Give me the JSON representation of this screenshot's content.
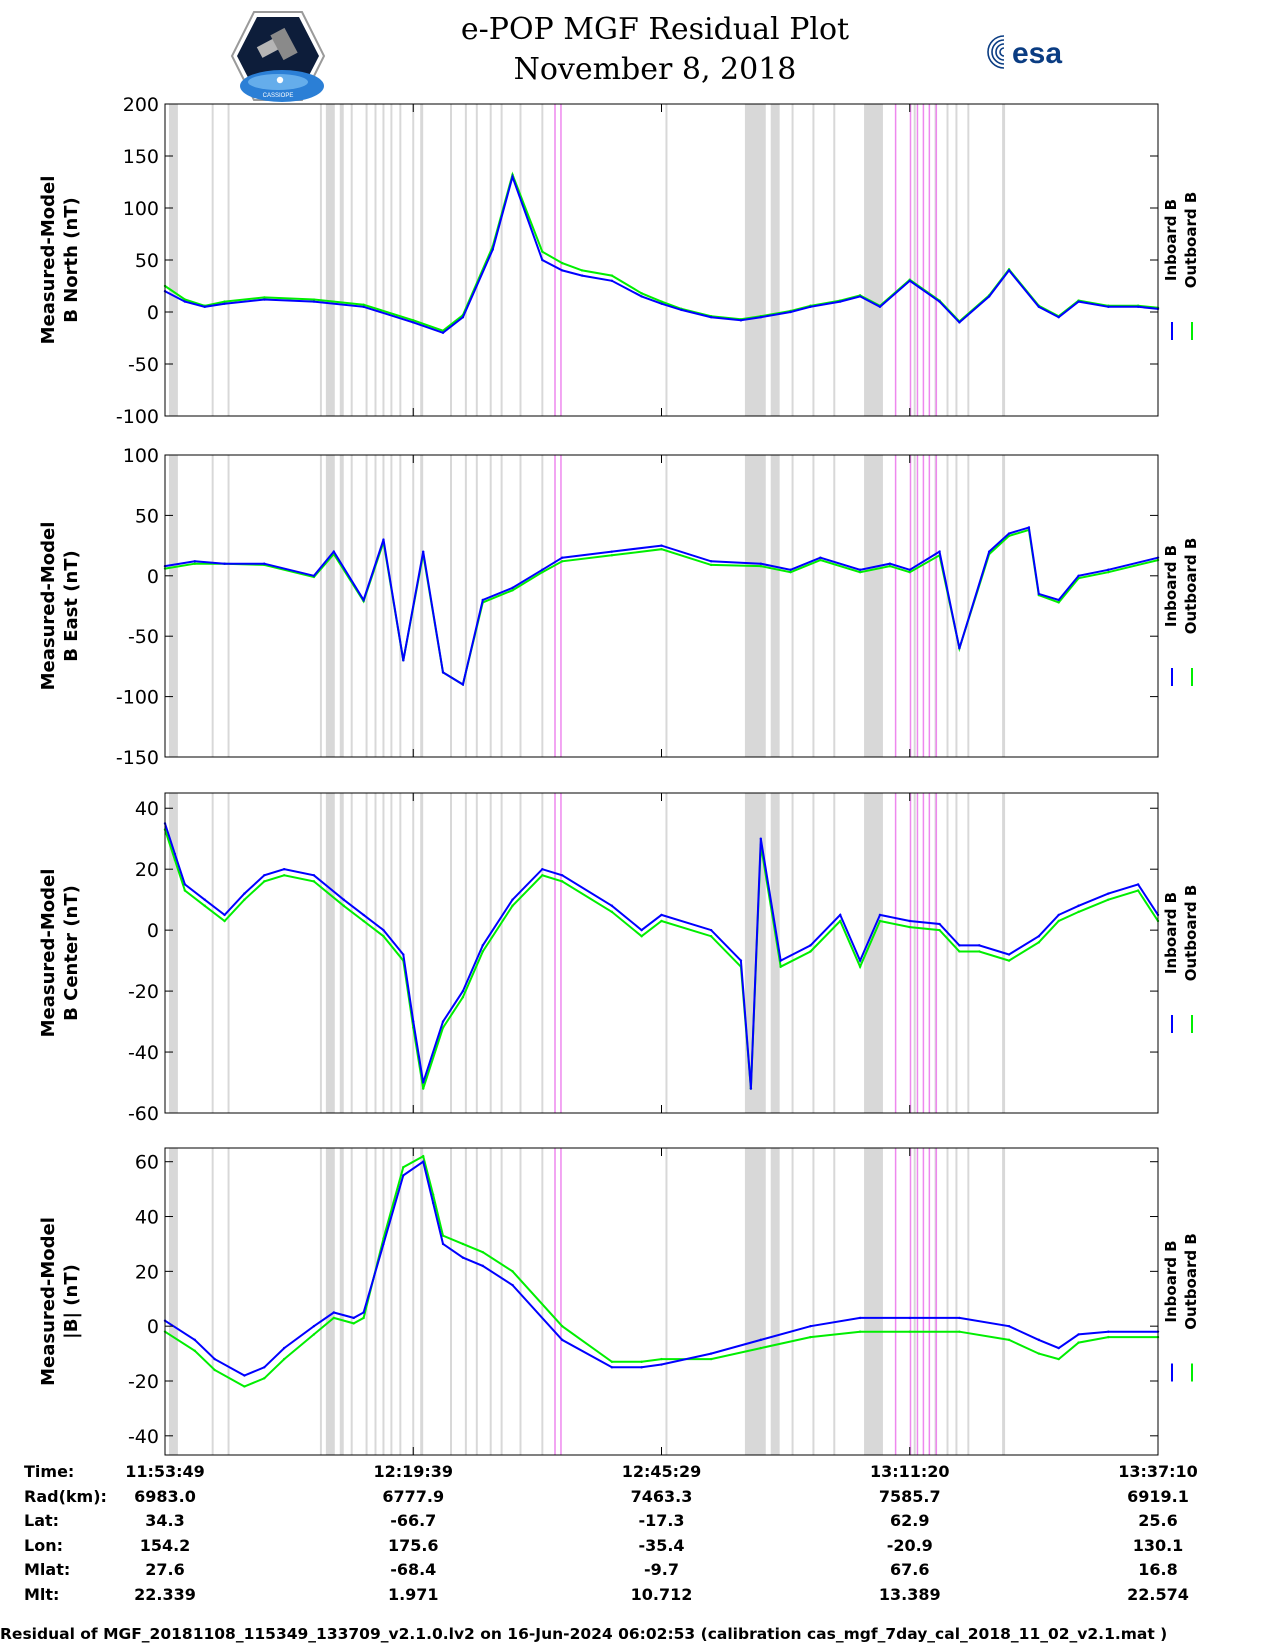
{
  "title": "e-POP MGF Residual Plot",
  "subtitle": "November 8, 2018",
  "logos": {
    "left": "CASSIOPE",
    "right": "esa"
  },
  "colors": {
    "inboard": "#0000ff",
    "outboard": "#00ee00",
    "gray_band": "#d8d8d8",
    "pink_band": "#ee88ee"
  },
  "chart_data": [
    {
      "type": "line",
      "ylabel_line1": "Measured-Model",
      "ylabel_line2": "B North (nT)",
      "ylim": [
        -100,
        200
      ],
      "yticks": [
        "200",
        "150",
        "100",
        "50",
        "0",
        "-50",
        "-100"
      ],
      "ytick_values": [
        200,
        150,
        100,
        50,
        0,
        -50,
        -100
      ],
      "legend": [
        "Inboard B",
        "Outboard B"
      ],
      "series": [
        {
          "name": "Inboard B",
          "x": [
            0,
            2,
            4,
            6,
            10,
            15,
            20,
            25,
            28,
            30,
            33,
            35,
            38,
            40,
            42,
            45,
            48,
            50,
            52,
            55,
            58,
            60,
            63,
            65,
            68,
            70,
            72,
            75,
            78,
            80,
            83,
            85,
            88,
            90,
            92,
            95,
            98,
            100
          ],
          "values": [
            20,
            10,
            5,
            8,
            12,
            10,
            5,
            -10,
            -20,
            -5,
            60,
            130,
            50,
            40,
            35,
            30,
            15,
            8,
            2,
            -5,
            -8,
            -5,
            0,
            5,
            10,
            15,
            5,
            30,
            10,
            -10,
            15,
            40,
            5,
            -5,
            10,
            5,
            5,
            3
          ]
        },
        {
          "name": "Outboard B",
          "x": [
            0,
            2,
            4,
            6,
            10,
            15,
            20,
            25,
            28,
            30,
            33,
            35,
            38,
            40,
            42,
            45,
            48,
            50,
            52,
            55,
            58,
            60,
            63,
            65,
            68,
            70,
            72,
            75,
            78,
            80,
            83,
            85,
            88,
            90,
            92,
            95,
            98,
            100
          ],
          "values": [
            25,
            12,
            6,
            10,
            14,
            12,
            7,
            -8,
            -18,
            -3,
            63,
            132,
            58,
            47,
            40,
            35,
            18,
            10,
            3,
            -4,
            -7,
            -4,
            1,
            6,
            11,
            16,
            6,
            31,
            11,
            -9,
            16,
            41,
            6,
            -4,
            11,
            6,
            6,
            4
          ]
        }
      ]
    },
    {
      "type": "line",
      "ylabel_line1": "Measured-Model",
      "ylabel_line2": "B East (nT)",
      "ylim": [
        -150,
        100
      ],
      "yticks": [
        "100",
        "50",
        "0",
        "-50",
        "-100",
        "-150"
      ],
      "ytick_values": [
        100,
        50,
        0,
        -50,
        -100,
        -150
      ],
      "legend": [
        "Inboard B",
        "Outboard B"
      ],
      "series": [
        {
          "name": "Inboard B",
          "x": [
            0,
            3,
            6,
            10,
            15,
            17,
            20,
            22,
            24,
            26,
            28,
            30,
            32,
            35,
            38,
            40,
            45,
            50,
            55,
            60,
            63,
            66,
            70,
            73,
            75,
            78,
            80,
            83,
            85,
            87,
            88,
            90,
            92,
            95,
            100
          ],
          "values": [
            8,
            12,
            10,
            10,
            0,
            20,
            -20,
            30,
            -70,
            20,
            -80,
            -90,
            -20,
            -10,
            5,
            15,
            20,
            25,
            12,
            10,
            5,
            15,
            5,
            10,
            5,
            20,
            -60,
            20,
            35,
            40,
            -15,
            -20,
            0,
            5,
            15
          ]
        },
        {
          "name": "Outboard B",
          "x": [
            0,
            3,
            6,
            10,
            15,
            17,
            20,
            22,
            24,
            26,
            28,
            30,
            32,
            35,
            38,
            40,
            45,
            50,
            55,
            60,
            63,
            66,
            70,
            73,
            75,
            78,
            80,
            83,
            85,
            87,
            88,
            90,
            92,
            95,
            100
          ],
          "values": [
            6,
            10,
            10,
            9,
            -1,
            18,
            -21,
            28,
            -70,
            18,
            -80,
            -90,
            -22,
            -12,
            3,
            12,
            17,
            22,
            9,
            8,
            3,
            13,
            3,
            8,
            3,
            17,
            -60,
            18,
            33,
            38,
            -16,
            -22,
            -2,
            3,
            13
          ]
        }
      ]
    },
    {
      "type": "line",
      "ylabel_line1": "Measured-Model",
      "ylabel_line2": "B Center (nT)",
      "ylim": [
        -60,
        45
      ],
      "yticks": [
        "40",
        "20",
        "0",
        "-20",
        "-40",
        "-60"
      ],
      "ytick_values": [
        40,
        20,
        0,
        -20,
        -40,
        -60
      ],
      "legend": [
        "Inboard B",
        "Outboard B"
      ],
      "series": [
        {
          "name": "Inboard B",
          "x": [
            0,
            1,
            2,
            4,
            6,
            8,
            10,
            12,
            15,
            18,
            20,
            22,
            24,
            25,
            26,
            28,
            30,
            32,
            35,
            38,
            40,
            45,
            48,
            50,
            55,
            58,
            59,
            60,
            62,
            65,
            68,
            70,
            72,
            75,
            78,
            80,
            82,
            85,
            88,
            90,
            92,
            95,
            98,
            100
          ],
          "values": [
            35,
            25,
            15,
            10,
            5,
            12,
            18,
            20,
            18,
            10,
            5,
            0,
            -8,
            -30,
            -50,
            -30,
            -20,
            -5,
            10,
            20,
            18,
            8,
            0,
            5,
            0,
            -10,
            -52,
            30,
            -10,
            -5,
            5,
            -10,
            5,
            3,
            2,
            -5,
            -5,
            -8,
            -2,
            5,
            8,
            12,
            15,
            5
          ]
        },
        {
          "name": "Outboard B",
          "x": [
            0,
            1,
            2,
            4,
            6,
            8,
            10,
            12,
            15,
            18,
            20,
            22,
            24,
            25,
            26,
            28,
            30,
            32,
            35,
            38,
            40,
            45,
            48,
            50,
            55,
            58,
            59,
            60,
            62,
            65,
            68,
            70,
            72,
            75,
            78,
            80,
            82,
            85,
            88,
            90,
            92,
            95,
            98,
            100
          ],
          "values": [
            33,
            23,
            13,
            8,
            3,
            10,
            16,
            18,
            16,
            8,
            3,
            -2,
            -10,
            -32,
            -52,
            -32,
            -22,
            -7,
            8,
            18,
            16,
            6,
            -2,
            3,
            -2,
            -12,
            -52,
            28,
            -12,
            -7,
            3,
            -12,
            3,
            1,
            0,
            -7,
            -7,
            -10,
            -4,
            3,
            6,
            10,
            13,
            3
          ]
        }
      ]
    },
    {
      "type": "line",
      "ylabel_line1": "Measured-Model",
      "ylabel_line2": "|B| (nT)",
      "ylim": [
        -47,
        65
      ],
      "yticks": [
        "60",
        "40",
        "20",
        "0",
        "-20",
        "-40"
      ],
      "ytick_values": [
        60,
        40,
        20,
        0,
        -20,
        -40
      ],
      "legend": [
        "Inboard B",
        "Outboard B"
      ],
      "series": [
        {
          "name": "Inboard B",
          "x": [
            0,
            3,
            5,
            8,
            10,
            12,
            15,
            17,
            19,
            20,
            22,
            24,
            26,
            27,
            28,
            30,
            32,
            35,
            40,
            45,
            48,
            50,
            55,
            60,
            65,
            70,
            75,
            80,
            85,
            88,
            90,
            92,
            95,
            100
          ],
          "values": [
            2,
            -5,
            -12,
            -18,
            -15,
            -8,
            0,
            5,
            3,
            5,
            30,
            55,
            60,
            45,
            30,
            25,
            22,
            15,
            -5,
            -15,
            -15,
            -14,
            -10,
            -5,
            0,
            3,
            3,
            3,
            0,
            -5,
            -8,
            -3,
            -2,
            -2
          ]
        },
        {
          "name": "Outboard B",
          "x": [
            0,
            3,
            5,
            8,
            10,
            12,
            15,
            17,
            19,
            20,
            22,
            24,
            26,
            27,
            28,
            30,
            32,
            35,
            40,
            45,
            48,
            50,
            55,
            60,
            65,
            70,
            75,
            80,
            85,
            88,
            90,
            92,
            95,
            100
          ],
          "values": [
            -2,
            -9,
            -16,
            -22,
            -19,
            -12,
            -3,
            3,
            1,
            3,
            32,
            58,
            62,
            48,
            33,
            30,
            27,
            20,
            0,
            -13,
            -13,
            -12,
            -12,
            -8,
            -4,
            -2,
            -2,
            -2,
            -5,
            -10,
            -12,
            -6,
            -4,
            -4
          ]
        }
      ]
    }
  ],
  "gray_bands_pct": [
    [
      0.4,
      1.3
    ],
    [
      4.7,
      4.9
    ],
    [
      6.3,
      6.5
    ],
    [
      15.6,
      15.8
    ],
    [
      16.2,
      17.1
    ],
    [
      17.6,
      18.0
    ],
    [
      18.7,
      18.9
    ],
    [
      20.2,
      20.4
    ],
    [
      21.1,
      21.3
    ],
    [
      21.9,
      22.1
    ],
    [
      22.7,
      22.9
    ],
    [
      23.6,
      23.8
    ],
    [
      24.9,
      25.1
    ],
    [
      25.7,
      26.0
    ],
    [
      28.7,
      28.9
    ],
    [
      30.2,
      30.4
    ],
    [
      31.3,
      31.5
    ],
    [
      32.7,
      32.9
    ],
    [
      33.8,
      34.0
    ],
    [
      35.7,
      35.9
    ],
    [
      37.9,
      38.1
    ],
    [
      50.4,
      50.6
    ],
    [
      58.4,
      60.5
    ],
    [
      61.0,
      61.9
    ],
    [
      63.1,
      63.3
    ],
    [
      65.2,
      65.4
    ],
    [
      67.3,
      67.5
    ],
    [
      70.4,
      72.3
    ],
    [
      75.4,
      75.6
    ],
    [
      77.5,
      77.7
    ],
    [
      78.7,
      78.9
    ],
    [
      79.6,
      79.8
    ],
    [
      80.8,
      81.0
    ],
    [
      84.3,
      84.6
    ]
  ],
  "pink_bands_pct": [
    [
      39.2,
      39.35
    ],
    [
      39.8,
      39.95
    ],
    [
      73.5,
      73.65
    ],
    [
      75.0,
      75.15
    ],
    [
      75.7,
      75.85
    ],
    [
      76.3,
      76.45
    ],
    [
      76.9,
      77.05
    ],
    [
      77.6,
      77.75
    ]
  ],
  "axis_ticks": [
    "11:53:49",
    "12:19:39",
    "12:45:29",
    "13:11:20",
    "13:37:10"
  ],
  "axis_ticks_pct": [
    0,
    25,
    50,
    75,
    100
  ],
  "info": {
    "labels": [
      "Time:",
      "Rad(km):",
      "Lat:",
      "Lon:",
      "Mlat:",
      "Mlt:"
    ],
    "columns": [
      [
        "11:53:49",
        "6983.0",
        "34.3",
        "154.2",
        "27.6",
        "22.339"
      ],
      [
        "12:19:39",
        "6777.9",
        "-66.7",
        "175.6",
        "-68.4",
        "1.971"
      ],
      [
        "12:45:29",
        "7463.3",
        "-17.3",
        "-35.4",
        "-9.7",
        "10.712"
      ],
      [
        "13:11:20",
        "7585.7",
        "62.9",
        "-20.9",
        "67.6",
        "13.389"
      ],
      [
        "13:37:10",
        "6919.1",
        "25.6",
        "130.1",
        "16.8",
        "22.574"
      ]
    ]
  },
  "footer": "Residual of MGF_20181108_115349_133709_v2.1.0.lv2 on 16-Jun-2024 06:02:53 (calibration cas_mgf_7day_cal_2018_11_02_v2.1.mat )"
}
